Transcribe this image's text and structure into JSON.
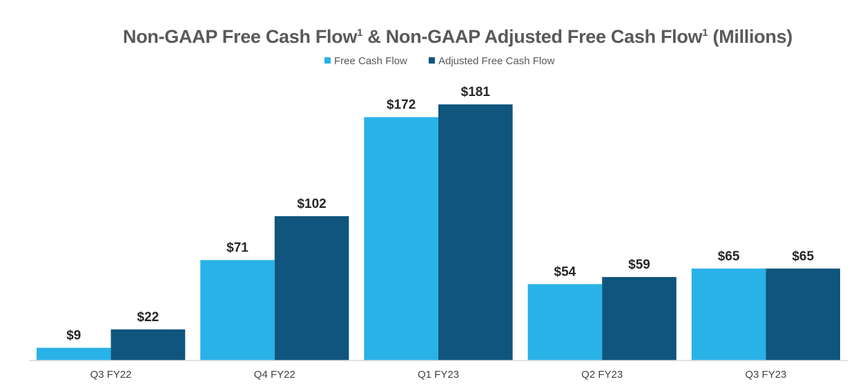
{
  "chart_data": {
    "type": "bar",
    "title": {
      "part1": "Non-GAAP Free Cash Flow",
      "sup1": "1",
      "part2": " & Non-GAAP Adjusted Free Cash Flow",
      "sup2": "1",
      "part3": " (Millions)"
    },
    "categories": [
      "Q3 FY22",
      "Q4 FY22",
      "Q1 FY23",
      "Q2 FY23",
      "Q3 FY23"
    ],
    "series": [
      {
        "name": "Free Cash Flow",
        "color": "#29B2E8",
        "values": [
          9,
          71,
          172,
          54,
          65
        ],
        "labels": [
          "$9",
          "$71",
          "$172",
          "$54",
          "$65"
        ]
      },
      {
        "name": "Adjusted Free Cash Flow",
        "color": "#0F557D",
        "values": [
          22,
          102,
          181,
          59,
          65
        ],
        "labels": [
          "$22",
          "$102",
          "$181",
          "$59",
          "$65"
        ]
      }
    ],
    "ylim": [
      0,
      205
    ],
    "legend_position": "top-center",
    "grid": false,
    "xlabel": "",
    "ylabel": ""
  }
}
